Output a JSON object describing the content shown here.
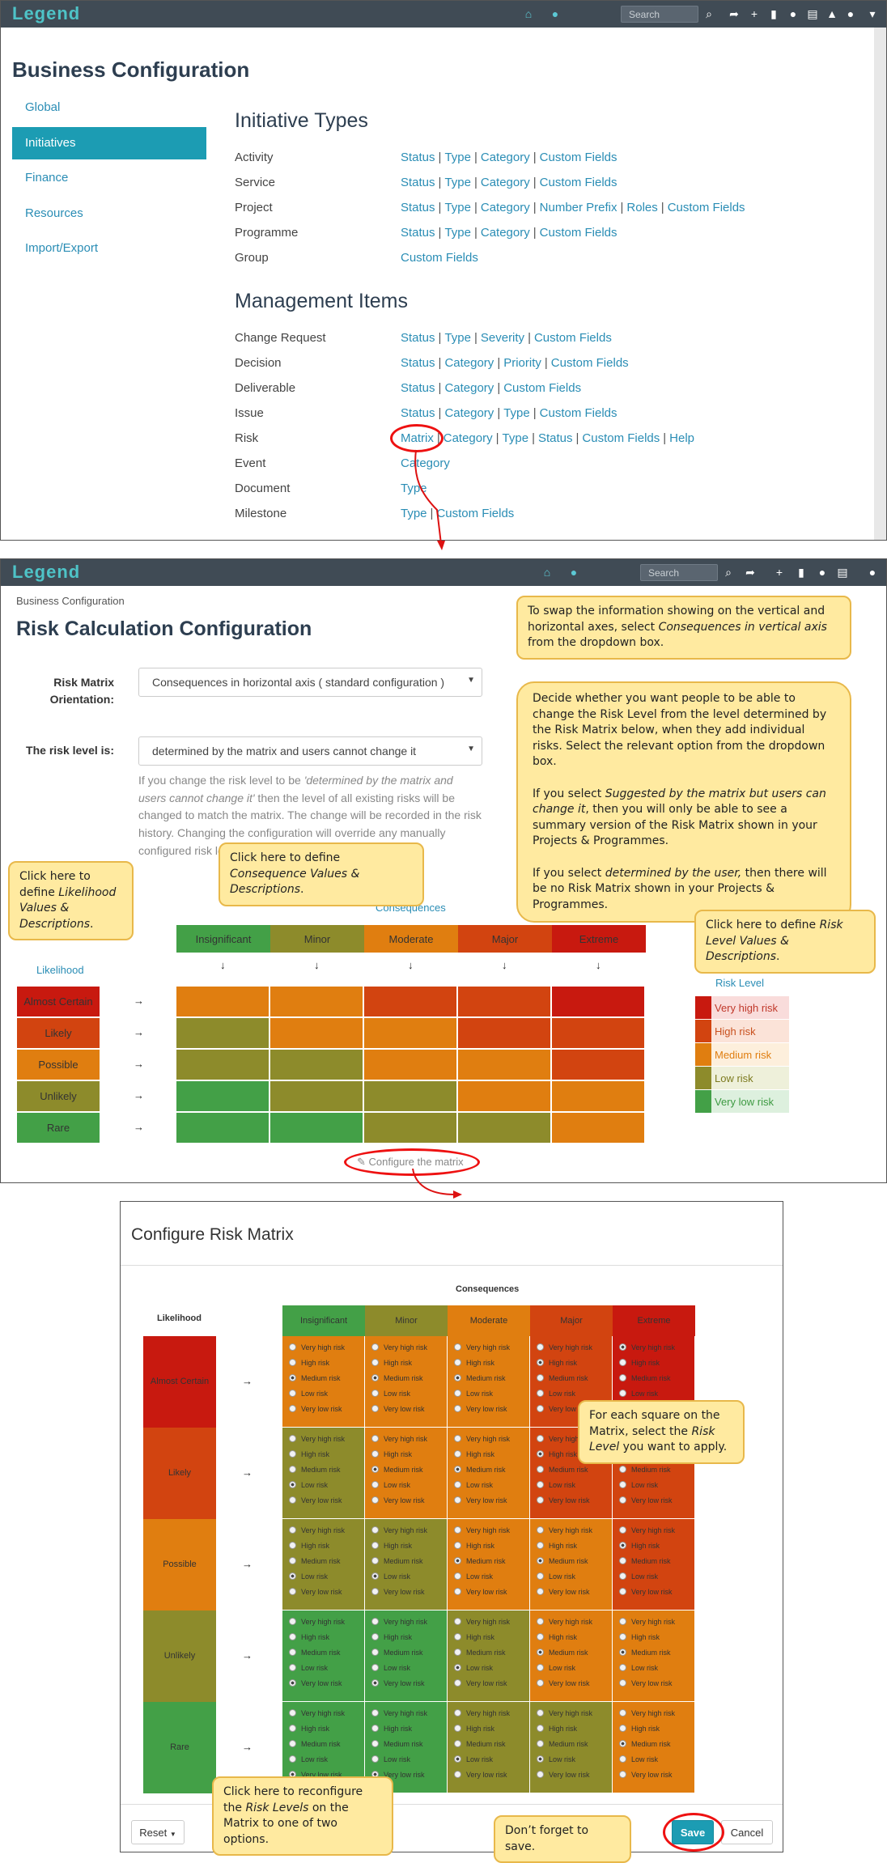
{
  "colors": {
    "red": "#c8190f",
    "orange_red": "#d24410",
    "orange": "#e07e10",
    "olive": "#8d8b2b",
    "green": "#43a047",
    "nav": "#404b55",
    "accent": "#1c9cb3",
    "link": "#2a8db5"
  },
  "app": {
    "logo": "Legend",
    "search_placeholder": "Search"
  },
  "panel1": {
    "title": "Business Configuration",
    "sidebar": [
      "Global",
      "Initiatives",
      "Finance",
      "Resources",
      "Import/Export"
    ],
    "initiative_types_heading": "Initiative Types",
    "initiative_types": [
      {
        "label": "Activity",
        "links": [
          "Status",
          "Type",
          "Category",
          "Custom Fields"
        ]
      },
      {
        "label": "Service",
        "links": [
          "Status",
          "Type",
          "Category",
          "Custom Fields"
        ]
      },
      {
        "label": "Project",
        "links": [
          "Status",
          "Type",
          "Category",
          "Number Prefix",
          "Roles",
          "Custom Fields"
        ]
      },
      {
        "label": "Programme",
        "links": [
          "Status",
          "Type",
          "Category",
          "Custom Fields"
        ]
      },
      {
        "label": "Group",
        "links": [
          "Custom Fields"
        ]
      }
    ],
    "management_items_heading": "Management Items",
    "management_items": [
      {
        "label": "Change Request",
        "links": [
          "Status",
          "Type",
          "Severity",
          "Custom Fields"
        ]
      },
      {
        "label": "Decision",
        "links": [
          "Status",
          "Category",
          "Priority",
          "Custom Fields"
        ]
      },
      {
        "label": "Deliverable",
        "links": [
          "Status",
          "Category",
          "Custom Fields"
        ]
      },
      {
        "label": "Issue",
        "links": [
          "Status",
          "Category",
          "Type",
          "Custom Fields"
        ]
      },
      {
        "label": "Risk",
        "links": [
          "Matrix",
          "Category",
          "Type",
          "Status",
          "Custom Fields",
          "Help"
        ]
      },
      {
        "label": "Event",
        "links": [
          "Category"
        ]
      },
      {
        "label": "Document",
        "links": [
          "Type"
        ]
      },
      {
        "label": "Milestone",
        "links": [
          "Type",
          "Custom Fields"
        ]
      }
    ]
  },
  "panel2": {
    "breadcrumb": "Business Configuration",
    "title": "Risk Calculation Configuration",
    "orientation_label": "Risk Matrix Orientation:",
    "orientation_value": "Consequences in horizontal axis ( standard configuration )",
    "risk_level_label": "The risk level is:",
    "risk_level_value": "determined by the matrix and users cannot change it",
    "help_text_a": "If you change the risk level to be ",
    "help_text_em": "'determined by the matrix and users cannot change it'",
    "help_text_b": " then the level of all existing risks will be changed to match the matrix. The change will be recorded in the risk history. Changing the configuration will override any manually configured risk levels.",
    "consequences_label": "Consequences",
    "likelihood_label": "Likelihood",
    "risk_level_heading": "Risk Level",
    "consequences": [
      "Insignificant",
      "Minor",
      "Moderate",
      "Major",
      "Extreme"
    ],
    "likelihoods": [
      "Almost Certain",
      "Likely",
      "Possible",
      "Unlikely",
      "Rare"
    ],
    "risk_levels": [
      "Very high risk",
      "High risk",
      "Medium risk",
      "Low risk",
      "Very low risk"
    ],
    "configure_link": "Configure the matrix"
  },
  "panel3": {
    "title": "Configure Risk Matrix",
    "consequences_label": "Consequences",
    "likelihood_label": "Likelihood",
    "options": [
      "Very high risk",
      "High risk",
      "Medium risk",
      "Low risk",
      "Very low risk"
    ],
    "reset_label": "Reset",
    "save_label": "Save",
    "cancel_label": "Cancel"
  },
  "matrix_levels": [
    [
      2,
      2,
      1,
      1,
      0
    ],
    [
      3,
      2,
      2,
      1,
      1
    ],
    [
      3,
      3,
      2,
      2,
      1
    ],
    [
      4,
      3,
      3,
      2,
      2
    ],
    [
      4,
      4,
      3,
      3,
      2
    ]
  ],
  "config_levels": [
    [
      2,
      2,
      2,
      1,
      0
    ],
    [
      3,
      2,
      2,
      1,
      1
    ],
    [
      3,
      3,
      2,
      2,
      1
    ],
    [
      4,
      4,
      3,
      2,
      2
    ],
    [
      4,
      4,
      3,
      3,
      2
    ]
  ],
  "callouts": {
    "swap_a": "To swap the information showing on the vertical and horizontal axes, select ",
    "swap_em": "Consequences in vertical axis",
    "swap_b": " from the dropdown box.",
    "decide_1": "Decide whether you want people to be able to change the Risk Level from the level determined by the Risk Matrix below, when they add individual risks.  Select the relevant option from the dropdown box.",
    "decide_2a": "If you select ",
    "decide_2em": "Suggested by the matrix but users can change it",
    "decide_2b": ", then you will only be able to see a summary version of the Risk Matrix shown in your Projects & Programmes.",
    "decide_3a": "If you select ",
    "decide_3em": "determined by the user,",
    "decide_3b": " then there will be no Risk Matrix shown in your Projects & Programmes.",
    "consequence_a": "Click here to define ",
    "consequence_em": "Consequence Values & Descriptions",
    "consequence_b": ".",
    "likelihood_a": "Click here to define ",
    "likelihood_em": "Likelihood Values & Descriptions",
    "likelihood_b": ".",
    "risklevel_a": "Click here to define ",
    "risklevel_em": "Risk Level Values & Descriptions",
    "risklevel_b": ".",
    "each_a": "For each square on the Matrix, select the ",
    "each_em": "Risk Level",
    "each_b": " you want to apply.",
    "reconf_a": "Click here to reconfigure the ",
    "reconf_em": "Risk Levels",
    "reconf_b": " on the Matrix to one of two options.",
    "save": "Don’t forget to save."
  }
}
